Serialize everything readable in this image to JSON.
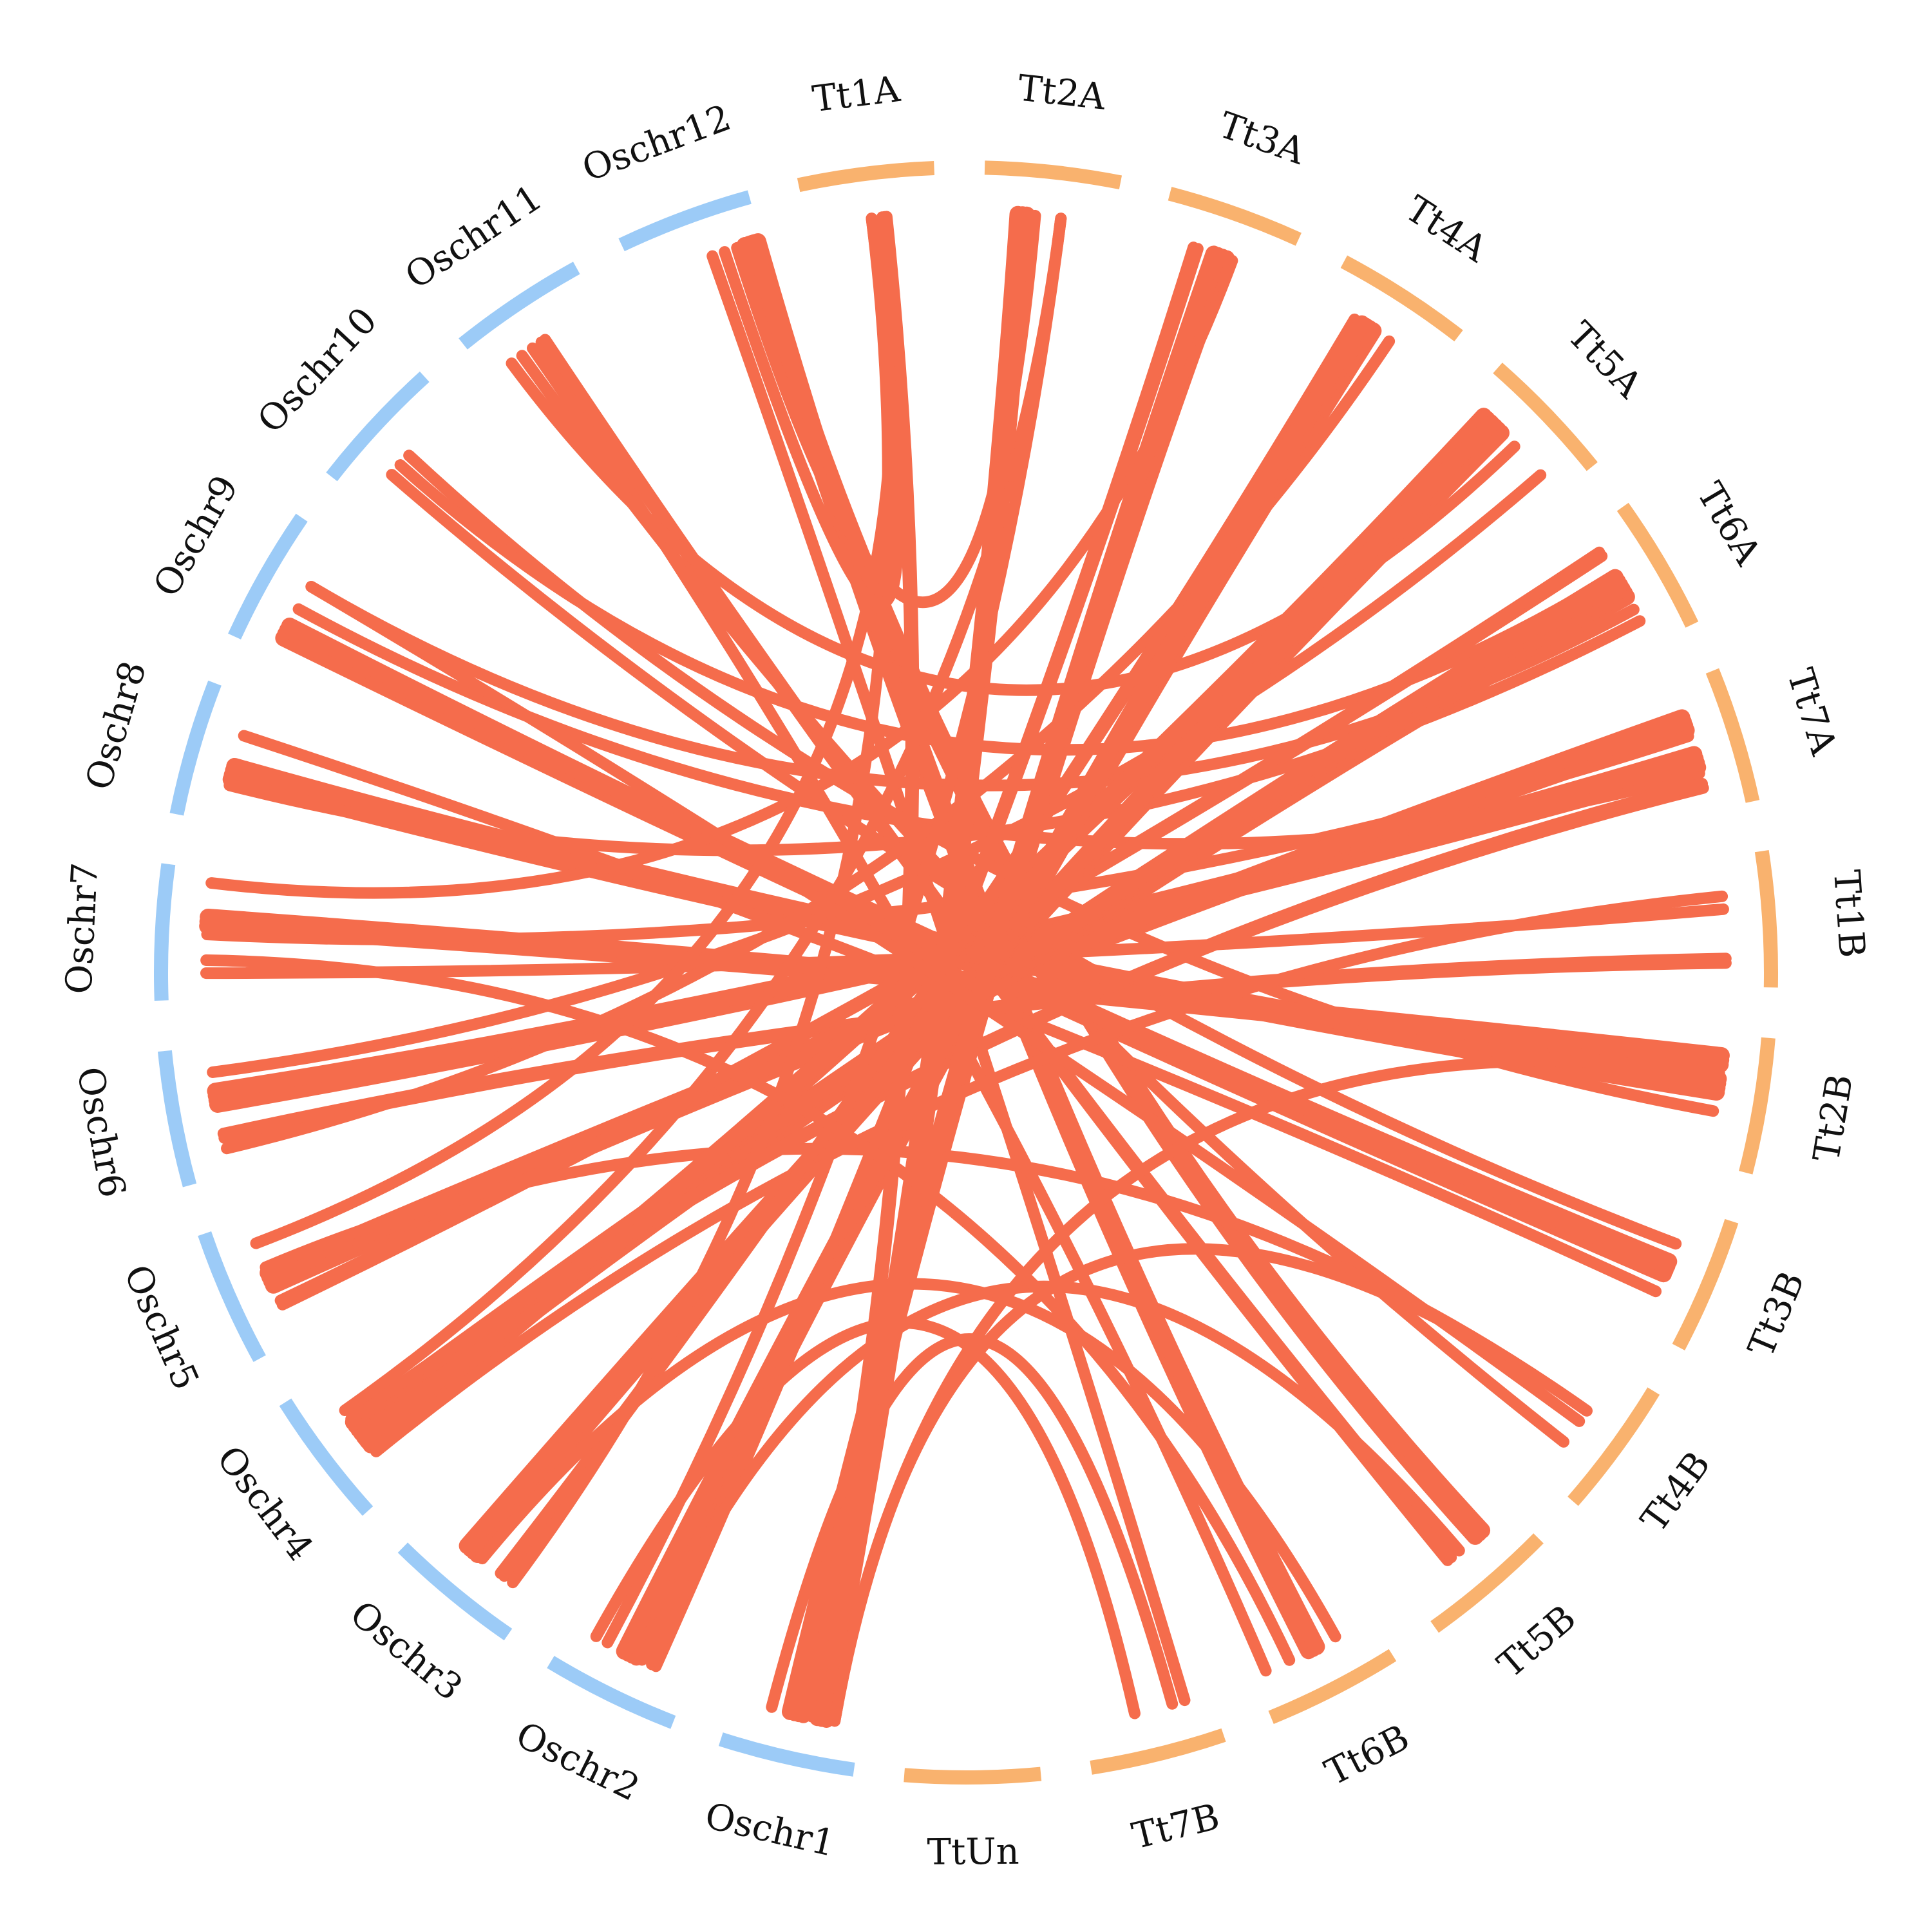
{
  "colors": {
    "rice_arc": "#9ccbf7",
    "wheat_arc": "#f9b26e",
    "link": "#f56c4c",
    "label": "#111111"
  },
  "chromosomes": [
    {
      "name": "Tt1A",
      "group": "wheat"
    },
    {
      "name": "Tt2A",
      "group": "wheat"
    },
    {
      "name": "Tt3A",
      "group": "wheat"
    },
    {
      "name": "Tt4A",
      "group": "wheat"
    },
    {
      "name": "Tt5A",
      "group": "wheat"
    },
    {
      "name": "Tt6A",
      "group": "wheat"
    },
    {
      "name": "Tt7A",
      "group": "wheat"
    },
    {
      "name": "Tt1B",
      "group": "wheat"
    },
    {
      "name": "Tt2B",
      "group": "wheat"
    },
    {
      "name": "Tt3B",
      "group": "wheat"
    },
    {
      "name": "Tt4B",
      "group": "wheat"
    },
    {
      "name": "Tt5B",
      "group": "wheat"
    },
    {
      "name": "Tt6B",
      "group": "wheat"
    },
    {
      "name": "Tt7B",
      "group": "wheat"
    },
    {
      "name": "TtUn",
      "group": "wheat"
    },
    {
      "name": "Oschr1",
      "group": "rice"
    },
    {
      "name": "Oschr2",
      "group": "rice"
    },
    {
      "name": "Oschr3",
      "group": "rice"
    },
    {
      "name": "Oschr4",
      "group": "rice"
    },
    {
      "name": "Oschr5",
      "group": "rice"
    },
    {
      "name": "Oschr6",
      "group": "rice"
    },
    {
      "name": "Oschr7",
      "group": "rice"
    },
    {
      "name": "Oschr8",
      "group": "rice"
    },
    {
      "name": "Oschr9",
      "group": "rice"
    },
    {
      "name": "Oschr10",
      "group": "rice"
    },
    {
      "name": "Oschr11",
      "group": "rice"
    },
    {
      "name": "Oschr12",
      "group": "rice"
    }
  ],
  "links": [
    [
      "Oschr12",
      "Tt6B",
      0.95,
      0.5,
      3
    ],
    [
      "Oschr12",
      "Tt5B",
      0.9,
      0.3,
      3
    ],
    [
      "Oschr12",
      "Tt7B",
      0.6,
      0.2,
      1
    ],
    [
      "Oschr12",
      "Tt2A",
      0.8,
      0.4,
      1
    ],
    [
      "Oschr11",
      "Tt5B",
      0.5,
      0.6,
      2
    ],
    [
      "Oschr11",
      "Tt4B",
      0.3,
      0.7,
      1
    ],
    [
      "Oschr11",
      "Tt6B",
      0.4,
      0.9,
      1
    ],
    [
      "Oschr11",
      "Tt5A",
      0.2,
      0.5,
      1
    ],
    [
      "Oschr10",
      "Tt3B",
      0.3,
      0.3,
      1
    ],
    [
      "Oschr10",
      "Tt2B",
      0.5,
      0.6,
      1
    ],
    [
      "Oschr10",
      "Tt6A",
      0.4,
      0.4,
      1
    ],
    [
      "Oschr9",
      "Tt3B",
      0.2,
      0.5,
      4
    ],
    [
      "Oschr9",
      "Tt6A",
      0.6,
      0.7,
      1
    ],
    [
      "Oschr9",
      "Tt7A",
      0.4,
      0.7,
      1
    ],
    [
      "Oschr8",
      "Tt2B",
      0.4,
      0.4,
      4
    ],
    [
      "Oschr8",
      "Tt3B",
      0.7,
      0.7,
      1
    ],
    [
      "Oschr8",
      "Tt6A",
      0.3,
      0.8,
      1
    ],
    [
      "Oschr7",
      "Tt2B",
      0.6,
      0.2,
      3
    ],
    [
      "Oschr7",
      "Tt1B",
      0.2,
      0.4,
      1
    ],
    [
      "Oschr7",
      "Tt7A",
      0.5,
      0.4,
      1
    ],
    [
      "Oschr7",
      "Tt3A",
      0.9,
      0.6,
      1
    ],
    [
      "Oschr6",
      "Tt7A",
      0.6,
      0.6,
      4
    ],
    [
      "Oschr6",
      "Tt1B",
      0.3,
      0.8,
      2
    ],
    [
      "Oschr6",
      "Tt5A",
      0.8,
      0.8,
      1
    ],
    [
      "Oschr6",
      "Tt4A",
      0.2,
      0.6,
      1
    ],
    [
      "Oschr5",
      "Tt7A",
      0.5,
      0.3,
      4
    ],
    [
      "Oschr5",
      "Tt6A",
      0.3,
      0.2,
      2
    ],
    [
      "Oschr5",
      "Tt1A",
      0.8,
      0.6,
      1
    ],
    [
      "Oschr5",
      "Tt4B",
      0.6,
      0.4,
      1
    ],
    [
      "Oschr4",
      "Tt6A",
      0.5,
      0.5,
      6
    ],
    [
      "Oschr4",
      "Tt5A",
      0.4,
      0.2,
      3
    ],
    [
      "Oschr4",
      "Tt7A",
      0.6,
      0.8,
      2
    ],
    [
      "Oschr4",
      "Tt2A",
      0.7,
      0.6,
      1
    ],
    [
      "Oschr4",
      "Tt1B",
      0.3,
      0.3,
      1
    ],
    [
      "Oschr3",
      "Tt5A",
      0.6,
      0.3,
      4
    ],
    [
      "Oschr3",
      "Tt4A",
      0.3,
      0.3,
      2
    ],
    [
      "Oschr3",
      "Tt6B",
      0.5,
      0.3,
      1
    ],
    [
      "Oschr3",
      "Tt1A",
      0.2,
      0.5,
      1
    ],
    [
      "Oschr2",
      "Tt4A",
      0.5,
      0.4,
      4
    ],
    [
      "Oschr2",
      "Tt3A",
      0.3,
      0.3,
      2
    ],
    [
      "Oschr2",
      "Tt2A",
      0.7,
      0.6,
      1
    ],
    [
      "Oschr2",
      "Tt7B",
      0.8,
      0.6,
      1
    ],
    [
      "Oschr2",
      "Tt5B",
      0.4,
      0.5,
      1
    ],
    [
      "Oschr1",
      "Tt3A",
      0.5,
      0.5,
      4
    ],
    [
      "Oschr1",
      "Tt2A",
      0.3,
      0.3,
      3
    ],
    [
      "Oschr1",
      "Tt1A",
      0.4,
      0.6,
      2
    ],
    [
      "Oschr1",
      "Tt7B",
      0.7,
      0.3,
      1
    ],
    [
      "Oschr1",
      "Tt2B",
      0.2,
      0.3,
      1
    ],
    [
      "Oschr1",
      "Tt4B",
      0.2,
      0.4,
      1
    ],
    [
      "Oschr12",
      "Tt1A",
      0.7,
      0.5,
      1
    ],
    [
      "Oschr9",
      "Tt4B",
      0.6,
      0.5,
      1
    ],
    [
      "Oschr7",
      "Tt6B",
      0.3,
      0.7,
      1
    ]
  ]
}
